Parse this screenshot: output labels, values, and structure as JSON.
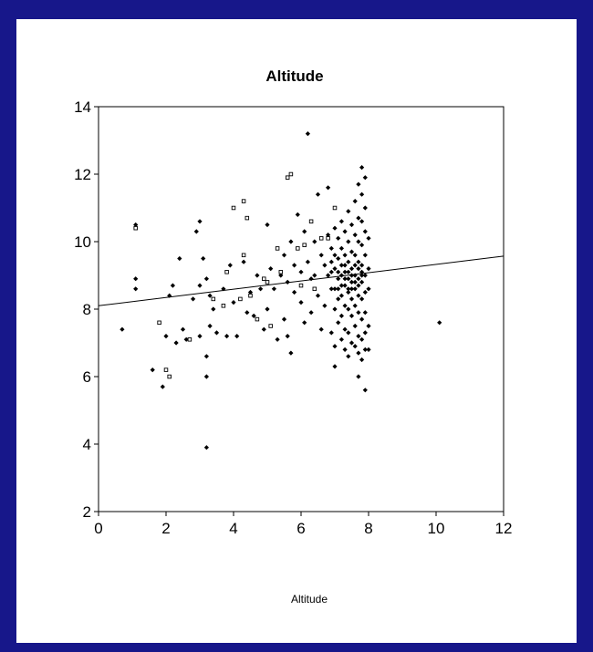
{
  "slide": {
    "background_color": "#17178a",
    "panel_color": "#ffffff"
  },
  "chart_data": {
    "type": "scatter",
    "title": "Altitude",
    "xlabel": "Altitude",
    "ylabel": "",
    "xlim": [
      0,
      12
    ],
    "ylim": [
      2,
      14
    ],
    "xticks": [
      0,
      2,
      4,
      6,
      8,
      10,
      12
    ],
    "yticks": [
      2,
      4,
      6,
      8,
      10,
      12,
      14
    ],
    "tick_labels": {
      "x": [
        "0",
        "2",
        "4",
        "6",
        "8",
        "10",
        "12"
      ],
      "y": [
        "2",
        "4",
        "6",
        "8",
        "10",
        "12",
        "14"
      ]
    },
    "grid": false,
    "legend": "none",
    "marker_color": "#000000",
    "fit_line": {
      "type": "linear",
      "x": [
        0,
        12
      ],
      "y": [
        8.1,
        9.57
      ]
    },
    "series": [
      {
        "marker": "filled",
        "points": [
          [
            0.7,
            7.4
          ],
          [
            1.1,
            10.5
          ],
          [
            1.1,
            8.9
          ],
          [
            1.1,
            8.6
          ],
          [
            1.6,
            6.2
          ],
          [
            1.9,
            5.7
          ],
          [
            2.0,
            7.2
          ],
          [
            2.1,
            8.4
          ],
          [
            2.2,
            8.7
          ],
          [
            2.3,
            7.0
          ],
          [
            2.4,
            9.5
          ],
          [
            2.5,
            7.4
          ],
          [
            2.6,
            7.1
          ],
          [
            2.8,
            8.3
          ],
          [
            2.9,
            10.3
          ],
          [
            3.0,
            10.6
          ],
          [
            3.0,
            8.7
          ],
          [
            3.0,
            7.2
          ],
          [
            3.1,
            9.5
          ],
          [
            3.2,
            8.9
          ],
          [
            3.2,
            6.6
          ],
          [
            3.2,
            6.0
          ],
          [
            3.2,
            3.9
          ],
          [
            3.3,
            8.4
          ],
          [
            3.3,
            7.5
          ],
          [
            3.4,
            8.0
          ],
          [
            3.5,
            7.3
          ],
          [
            3.7,
            8.6
          ],
          [
            3.8,
            7.2
          ],
          [
            3.9,
            9.3
          ],
          [
            4.0,
            8.2
          ],
          [
            4.1,
            7.2
          ],
          [
            4.3,
            9.4
          ],
          [
            4.4,
            7.9
          ],
          [
            4.5,
            8.5
          ],
          [
            4.6,
            7.8
          ],
          [
            4.7,
            9.0
          ],
          [
            4.8,
            8.6
          ],
          [
            4.9,
            7.4
          ],
          [
            5.0,
            10.5
          ],
          [
            5.0,
            8.0
          ],
          [
            5.1,
            9.2
          ],
          [
            5.2,
            8.6
          ],
          [
            5.3,
            7.1
          ],
          [
            5.4,
            9.0
          ],
          [
            5.5,
            9.6
          ],
          [
            5.5,
            7.7
          ],
          [
            5.6,
            8.8
          ],
          [
            5.6,
            7.2
          ],
          [
            5.7,
            10.0
          ],
          [
            5.7,
            6.7
          ],
          [
            5.8,
            9.3
          ],
          [
            5.8,
            8.5
          ],
          [
            5.9,
            10.8
          ],
          [
            6.0,
            9.1
          ],
          [
            6.0,
            8.2
          ],
          [
            6.1,
            10.3
          ],
          [
            6.1,
            7.6
          ],
          [
            6.2,
            13.2
          ],
          [
            6.2,
            9.4
          ],
          [
            6.3,
            8.9
          ],
          [
            6.3,
            7.9
          ],
          [
            6.4,
            10.0
          ],
          [
            6.4,
            9.0
          ],
          [
            6.5,
            11.4
          ],
          [
            6.5,
            8.4
          ],
          [
            6.6,
            9.6
          ],
          [
            6.6,
            7.4
          ],
          [
            6.7,
            9.3
          ],
          [
            6.7,
            8.1
          ],
          [
            6.8,
            11.6
          ],
          [
            6.8,
            10.2
          ],
          [
            6.8,
            9.0
          ],
          [
            6.9,
            9.8
          ],
          [
            6.9,
            8.6
          ],
          [
            6.9,
            7.3
          ],
          [
            7.0,
            10.4
          ],
          [
            7.0,
            9.2
          ],
          [
            7.0,
            8.0
          ],
          [
            7.0,
            6.9
          ],
          [
            7.0,
            6.3
          ],
          [
            7.1,
            10.1
          ],
          [
            7.1,
            9.5
          ],
          [
            7.1,
            8.9
          ],
          [
            7.1,
            8.3
          ],
          [
            7.1,
            7.6
          ],
          [
            7.2,
            10.6
          ],
          [
            7.2,
            9.8
          ],
          [
            7.2,
            9.0
          ],
          [
            7.2,
            8.4
          ],
          [
            7.2,
            7.8
          ],
          [
            7.2,
            7.1
          ],
          [
            7.3,
            10.3
          ],
          [
            7.3,
            9.6
          ],
          [
            7.3,
            9.1
          ],
          [
            7.3,
            8.7
          ],
          [
            7.3,
            8.1
          ],
          [
            7.3,
            7.4
          ],
          [
            7.3,
            6.8
          ],
          [
            7.4,
            10.9
          ],
          [
            7.4,
            10.0
          ],
          [
            7.4,
            9.4
          ],
          [
            7.4,
            8.9
          ],
          [
            7.4,
            8.5
          ],
          [
            7.4,
            8.0
          ],
          [
            7.4,
            7.3
          ],
          [
            7.4,
            6.6
          ],
          [
            7.5,
            10.5
          ],
          [
            7.5,
            9.7
          ],
          [
            7.5,
            9.2
          ],
          [
            7.5,
            8.8
          ],
          [
            7.5,
            8.3
          ],
          [
            7.5,
            7.8
          ],
          [
            7.5,
            7.0
          ],
          [
            7.6,
            11.2
          ],
          [
            7.6,
            10.2
          ],
          [
            7.6,
            9.6
          ],
          [
            7.6,
            9.0
          ],
          [
            7.6,
            8.6
          ],
          [
            7.6,
            8.1
          ],
          [
            7.6,
            7.5
          ],
          [
            7.6,
            6.9
          ],
          [
            7.7,
            11.7
          ],
          [
            7.7,
            10.7
          ],
          [
            7.7,
            10.0
          ],
          [
            7.7,
            9.4
          ],
          [
            7.7,
            8.9
          ],
          [
            7.7,
            8.4
          ],
          [
            7.7,
            7.9
          ],
          [
            7.7,
            7.2
          ],
          [
            7.7,
            6.7
          ],
          [
            7.7,
            6.0
          ],
          [
            7.8,
            12.2
          ],
          [
            7.8,
            11.4
          ],
          [
            7.8,
            10.6
          ],
          [
            7.8,
            9.9
          ],
          [
            7.8,
            9.3
          ],
          [
            7.8,
            8.8
          ],
          [
            7.8,
            8.3
          ],
          [
            7.8,
            7.7
          ],
          [
            7.8,
            7.1
          ],
          [
            7.8,
            6.5
          ],
          [
            7.9,
            11.9
          ],
          [
            7.9,
            11.0
          ],
          [
            7.9,
            10.3
          ],
          [
            7.9,
            9.6
          ],
          [
            7.9,
            9.0
          ],
          [
            7.9,
            8.5
          ],
          [
            7.9,
            7.9
          ],
          [
            7.9,
            7.3
          ],
          [
            7.9,
            6.8
          ],
          [
            7.9,
            5.6
          ],
          [
            8.0,
            10.1
          ],
          [
            8.0,
            9.2
          ],
          [
            8.0,
            8.6
          ],
          [
            8.0,
            7.5
          ],
          [
            8.0,
            6.8
          ],
          [
            10.1,
            7.6
          ],
          [
            6.9,
            9.4
          ],
          [
            7.0,
            8.6
          ],
          [
            7.1,
            9.1
          ],
          [
            7.2,
            8.7
          ],
          [
            7.3,
            9.3
          ],
          [
            7.4,
            8.6
          ],
          [
            7.5,
            9.0
          ],
          [
            7.6,
            8.8
          ],
          [
            7.7,
            9.2
          ],
          [
            7.8,
            9.1
          ],
          [
            7.2,
            9.3
          ],
          [
            7.3,
            8.9
          ],
          [
            7.4,
            9.1
          ],
          [
            7.5,
            8.6
          ],
          [
            7.6,
            9.3
          ],
          [
            7.7,
            8.7
          ],
          [
            7.8,
            9.0
          ],
          [
            7.1,
            8.6
          ],
          [
            7.0,
            9.6
          ],
          [
            6.9,
            9.1
          ]
        ]
      },
      {
        "marker": "open",
        "points": [
          [
            1.1,
            10.4
          ],
          [
            1.8,
            7.6
          ],
          [
            2.0,
            6.2
          ],
          [
            2.1,
            6.0
          ],
          [
            2.7,
            7.1
          ],
          [
            3.4,
            8.3
          ],
          [
            3.7,
            8.1
          ],
          [
            4.0,
            11.0
          ],
          [
            4.2,
            8.3
          ],
          [
            4.3,
            11.2
          ],
          [
            4.4,
            10.7
          ],
          [
            4.7,
            7.7
          ],
          [
            5.0,
            8.8
          ],
          [
            5.6,
            11.9
          ],
          [
            5.7,
            12.0
          ],
          [
            5.9,
            9.8
          ],
          [
            6.0,
            8.7
          ],
          [
            6.3,
            10.6
          ],
          [
            6.4,
            8.6
          ],
          [
            6.6,
            10.1
          ],
          [
            6.8,
            10.1
          ],
          [
            4.5,
            8.4
          ],
          [
            5.1,
            7.5
          ],
          [
            3.8,
            9.1
          ],
          [
            5.4,
            9.1
          ],
          [
            4.3,
            9.6
          ],
          [
            6.1,
            9.9
          ],
          [
            7.0,
            11.0
          ],
          [
            5.3,
            9.8
          ],
          [
            4.9,
            8.9
          ]
        ]
      }
    ]
  }
}
